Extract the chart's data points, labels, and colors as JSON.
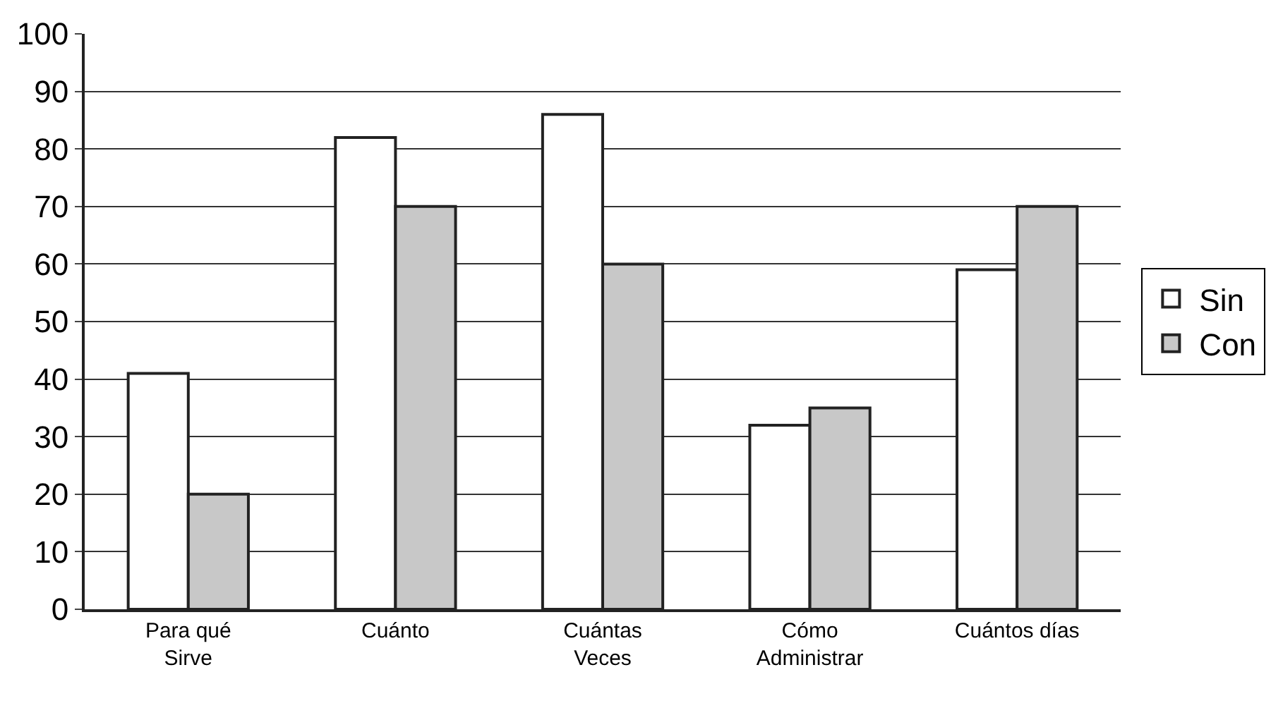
{
  "chart_data": {
    "type": "bar",
    "categories": [
      "Para qué\nSirve",
      "Cuánto",
      "Cuántas\nVeces",
      "Cómo\nAdministrar",
      "Cuántos días"
    ],
    "series": [
      {
        "name": "Sin",
        "color": "#ffffff",
        "values": [
          41,
          82,
          86,
          32,
          59
        ]
      },
      {
        "name": "Con",
        "color": "#c8c8c8",
        "values": [
          20,
          70,
          60,
          35,
          70
        ]
      }
    ],
    "ylim": [
      0,
      100
    ],
    "yticks": [
      0,
      10,
      20,
      30,
      40,
      50,
      60,
      70,
      80,
      90,
      100
    ],
    "grid": "y",
    "legend": "right"
  }
}
